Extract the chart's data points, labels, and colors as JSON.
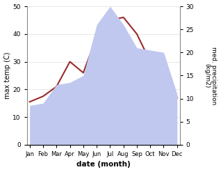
{
  "months": [
    "Jan",
    "Feb",
    "Mar",
    "Apr",
    "May",
    "Jun",
    "Jul",
    "Aug",
    "Sep",
    "Oct",
    "Nov",
    "Dec"
  ],
  "x_positions": [
    0,
    1,
    2,
    3,
    4,
    5,
    6,
    7,
    8,
    9,
    10,
    11
  ],
  "temperature": [
    15.5,
    17.5,
    21.0,
    30.0,
    26.0,
    39.0,
    45.0,
    46.0,
    40.0,
    30.0,
    20.0,
    17.0
  ],
  "precipitation": [
    8.5,
    9.0,
    13.0,
    13.5,
    15.0,
    26.0,
    30.0,
    26.0,
    21.0,
    20.5,
    20.0,
    11.0
  ],
  "temp_color": "#9b2929",
  "precip_fill_color": "#c0c8f0",
  "temp_ylim": [
    0,
    50
  ],
  "precip_ylim": [
    0,
    30
  ],
  "temp_yticks": [
    0,
    10,
    20,
    30,
    40,
    50
  ],
  "precip_yticks": [
    0,
    5,
    10,
    15,
    20,
    25,
    30
  ],
  "xlabel": "date (month)",
  "ylabel_left": "max temp (C)",
  "ylabel_right": "med. precipitation\n(kg/m2)"
}
